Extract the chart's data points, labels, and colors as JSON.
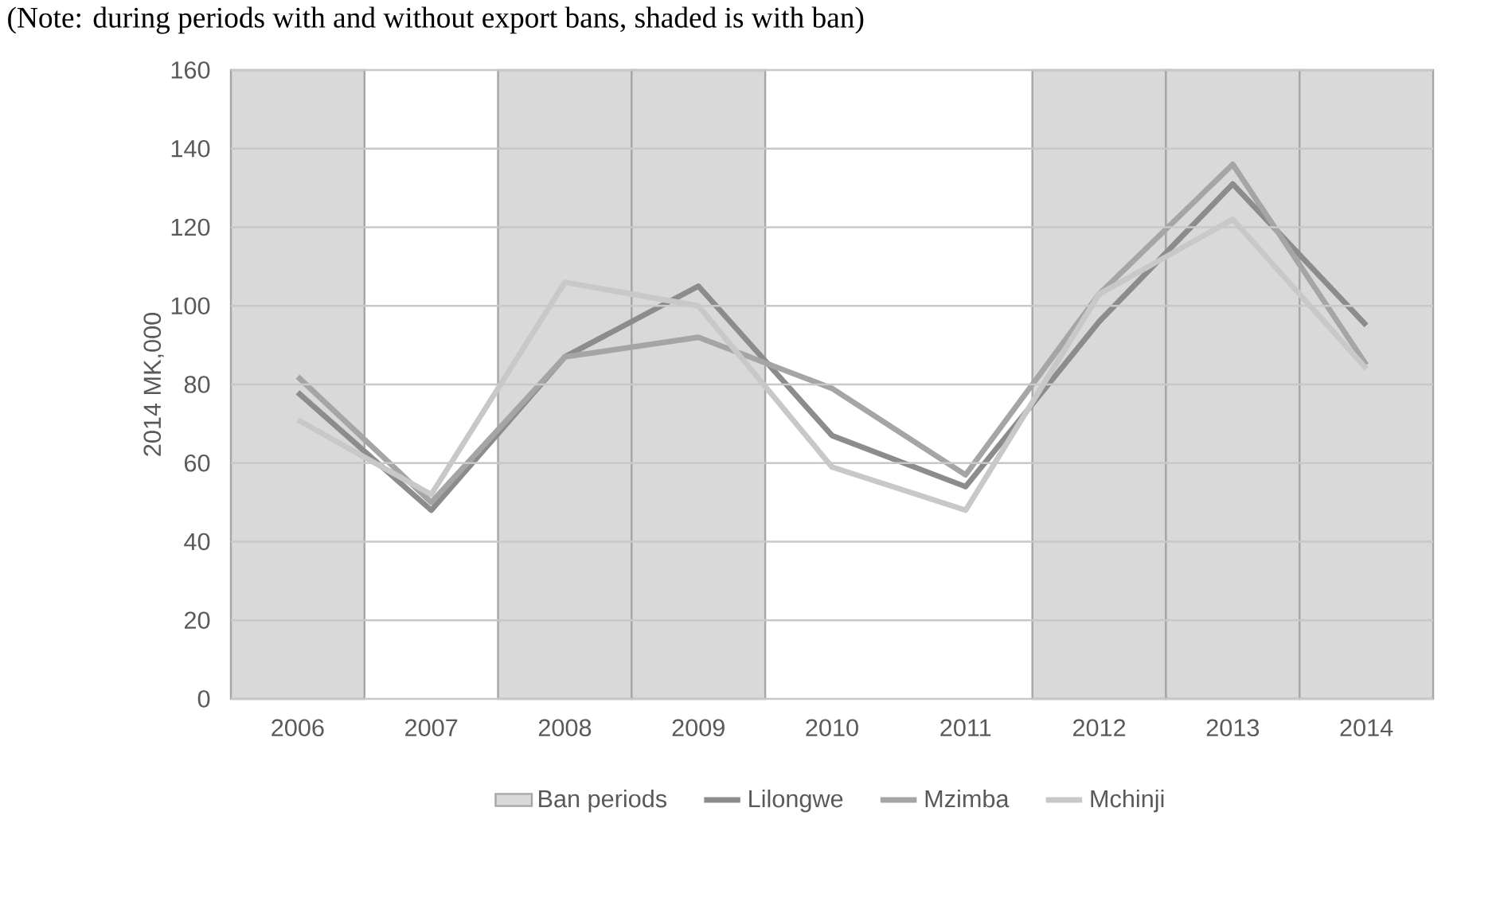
{
  "chart_data": {
    "type": "line",
    "annotations": [
      "(Note: during periods with and without export bans, shaded is with ban)"
    ],
    "ylabel": "2014 MK,000",
    "categories": [
      "2006",
      "2007",
      "2008",
      "2009",
      "2010",
      "2011",
      "2012",
      "2013",
      "2014"
    ],
    "series": [
      {
        "name": "Ban periods",
        "type": "bar",
        "color": "#d9d9d9",
        "values": [
          160,
          null,
          160,
          160,
          null,
          null,
          160,
          160,
          160
        ]
      },
      {
        "name": "Lilongwe",
        "color": "#8c8c8c",
        "values": [
          78,
          48,
          87,
          105,
          67,
          54,
          96,
          131,
          95
        ]
      },
      {
        "name": "Mzimba",
        "color": "#a5a5a5",
        "values": [
          82,
          50,
          87,
          92,
          79,
          57,
          103,
          136,
          85
        ]
      },
      {
        "name": "Mchinji",
        "color": "#c8c8c8",
        "values": [
          71,
          52,
          106,
          100,
          59,
          48,
          103,
          122,
          84
        ]
      }
    ],
    "ylim": [
      0,
      160
    ],
    "yticks": [
      0,
      20,
      40,
      60,
      80,
      100,
      120,
      140,
      160
    ],
    "grid": "y",
    "legend": "bottom"
  }
}
